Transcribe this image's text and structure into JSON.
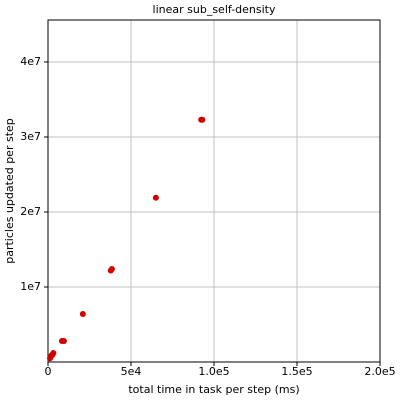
{
  "chart_data": {
    "type": "scatter",
    "title": "linear sub_self-density",
    "x_label": "total time in task per step (ms)",
    "y_label": "particles updated per step",
    "series": [
      {
        "color": "#d40000",
        "x": [
          93000,
          92300,
          65000,
          38500,
          37800,
          21000,
          9600,
          8400,
          3200,
          2800,
          2200,
          1700,
          1200
        ],
        "values": [
          32300000,
          32300000,
          21900000,
          12400000,
          12200000,
          6400000,
          2800000,
          2800000,
          1200000,
          1000000,
          900000,
          700000,
          500000
        ]
      }
    ],
    "xlim": [
      0,
      200000
    ],
    "xticks": [
      {
        "value": 0,
        "label": "0"
      },
      {
        "value": 50000,
        "label": "5e4"
      },
      {
        "value": 100000,
        "label": "1.0e5"
      },
      {
        "value": 150000,
        "label": "1.5e5"
      },
      {
        "value": 200000,
        "label": "2.0e5"
      }
    ],
    "ylim": [
      0,
      45600000
    ],
    "yticks": [
      {
        "value": 10000000,
        "label": "1e7"
      },
      {
        "value": 20000000,
        "label": "2e7"
      },
      {
        "value": 30000000,
        "label": "3e7"
      },
      {
        "value": 40000000,
        "label": "4e7"
      }
    ],
    "grid": true
  }
}
